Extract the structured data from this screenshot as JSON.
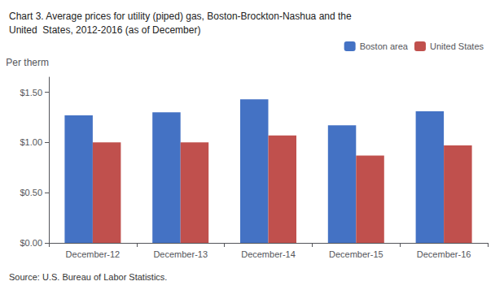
{
  "chart_data": {
    "type": "bar",
    "title": "Chart 3. Average prices for utility (piped) gas, Boston-Brockton-Nashua and the\nUnited  States, 2012-2016 (as of December)",
    "ylabel": "Per therm",
    "source": "Source: U.S. Bureau of Labor Statistics.",
    "categories": [
      "December-12",
      "December-13",
      "December-14",
      "December-15",
      "December-16"
    ],
    "series": [
      {
        "name": "Boston area",
        "color": "#4472C4",
        "values": [
          1.27,
          1.3,
          1.43,
          1.17,
          1.31
        ]
      },
      {
        "name": "United States",
        "color": "#C0504D",
        "values": [
          1.0,
          1.0,
          1.07,
          0.87,
          0.97
        ]
      }
    ],
    "ylim": [
      0,
      1.65
    ],
    "yticks": [
      {
        "value": 0.0,
        "label": "$0.00"
      },
      {
        "value": 0.5,
        "label": "$0.50"
      },
      {
        "value": 1.0,
        "label": "$1.00"
      },
      {
        "value": 1.5,
        "label": "$1.50"
      }
    ],
    "grid": false,
    "legend": "upper right"
  }
}
